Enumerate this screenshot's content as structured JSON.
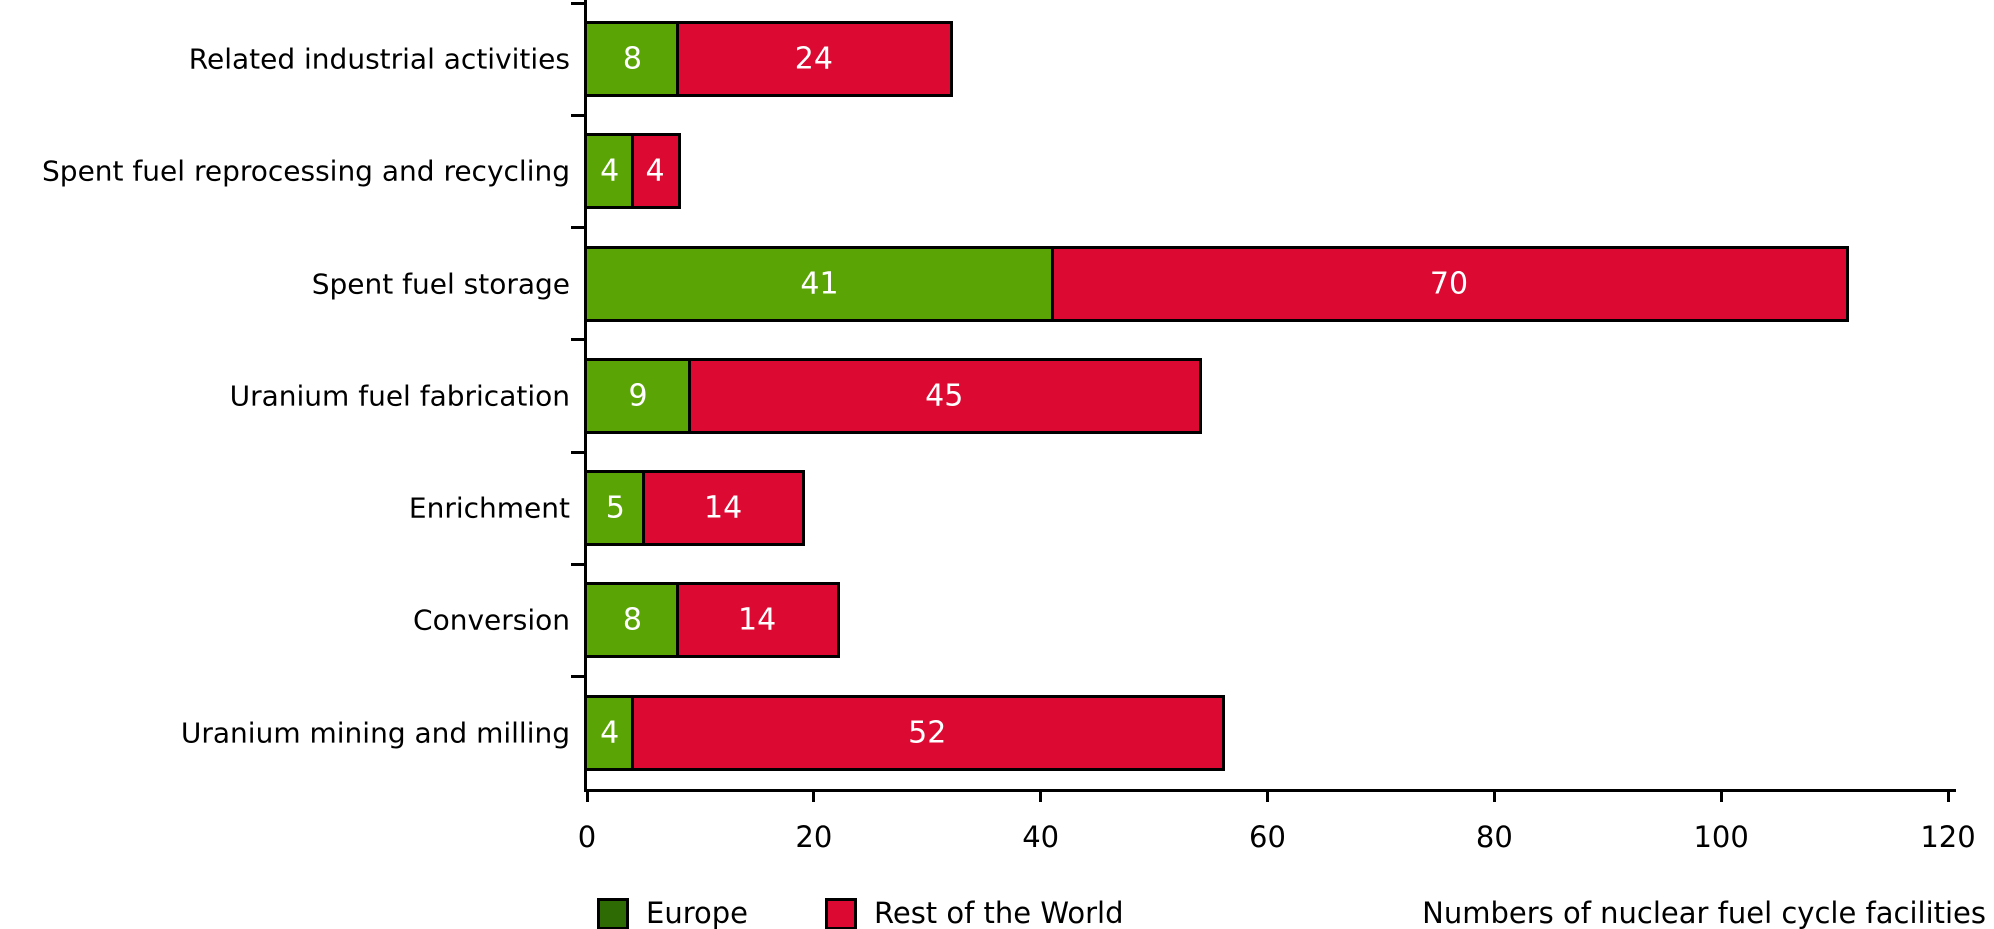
{
  "chart_data": {
    "type": "bar",
    "orientation": "horizontal",
    "stacked": true,
    "title": "",
    "xlabel": "Numbers of nuclear fuel cycle facilities",
    "ylabel": "",
    "xlim": [
      0,
      120
    ],
    "x_ticks": [
      0,
      20,
      40,
      60,
      80,
      100,
      120
    ],
    "grid": false,
    "legend_position": "bottom",
    "categories": [
      "Related industrial activities",
      "Spent fuel reprocessing and recycling",
      "Spent fuel storage",
      "Uranium fuel fabrication",
      "Enrichment",
      "Conversion",
      "Uranium mining and milling"
    ],
    "series": [
      {
        "name": "Europe",
        "color": "#5ba406",
        "values": [
          8,
          4,
          41,
          9,
          5,
          8,
          4
        ]
      },
      {
        "name": "Rest of the World",
        "color": "#dc0a32",
        "values": [
          24,
          4,
          70,
          45,
          14,
          14,
          52
        ]
      }
    ],
    "totals": [
      32,
      8,
      111,
      54,
      19,
      22,
      56
    ],
    "value_label_color": "#ffffff"
  },
  "legend": {
    "europe_label": "Europe",
    "europe_swatch_color": "#2e6b05",
    "rest_label": "Rest of the World",
    "rest_swatch_color": "#dc0a32"
  },
  "colors": {
    "bar_green": "#5ba406",
    "bar_red": "#dc0a32",
    "axis_black": "#000000",
    "background": "#ffffff"
  }
}
